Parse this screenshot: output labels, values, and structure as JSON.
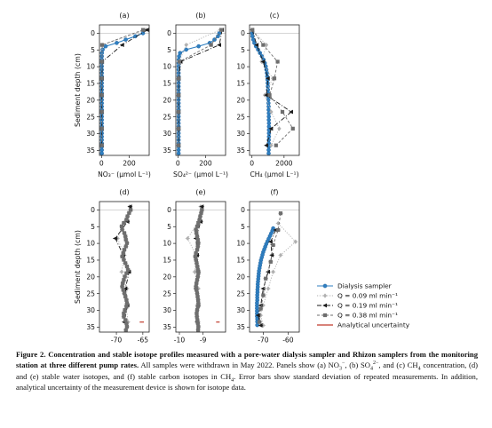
{
  "chart_data": [
    {
      "type": "line",
      "panel": "(a)",
      "xlabel": "NO₃⁻  (µmol L⁻¹)",
      "ylabel": "Sediment depth (cm)",
      "xlim": [
        -15,
        345
      ],
      "ylim": [
        -2.5,
        36.5
      ],
      "xticks": [
        0,
        200
      ],
      "yticks": [
        0,
        5,
        10,
        15,
        20,
        25,
        30,
        35
      ],
      "series": [
        {
          "name": "Dialysis sampler",
          "x": [
            300,
            245,
            175,
            110,
            30,
            8,
            3,
            2,
            2,
            2,
            2,
            2,
            2,
            2,
            2,
            2,
            2,
            2,
            2,
            2,
            2,
            2,
            2,
            2,
            2,
            2,
            2,
            2,
            2,
            2,
            2,
            2,
            2,
            2,
            2,
            2,
            2
          ],
          "y": [
            0,
            0.9,
            1.9,
            2.9,
            3.9,
            4.9,
            5.9,
            6.9,
            7.9,
            8.9,
            9.9,
            10.9,
            11.9,
            12.9,
            13.9,
            14.9,
            15.9,
            16.9,
            17.9,
            18.9,
            19.9,
            20.9,
            21.9,
            22.9,
            23.9,
            24.9,
            25.9,
            26.9,
            27.9,
            28.9,
            29.9,
            30.9,
            31.9,
            32.9,
            33.9,
            34.9,
            35.9
          ]
        },
        {
          "name": "Q = 0.09 ml min⁻¹",
          "x": [
            320,
            5,
            3,
            3,
            2,
            2,
            2,
            2
          ],
          "y": [
            -1,
            3.5,
            8.5,
            13.5,
            18.5,
            23.5,
            28.5,
            33.5
          ]
        },
        {
          "name": "Q = 0.19 ml min⁻¹",
          "x": [
            330,
            150,
            5,
            3,
            2,
            2,
            2,
            2
          ],
          "y": [
            -1,
            3.5,
            8.5,
            13.5,
            18.5,
            23.5,
            28.5,
            33.5
          ]
        },
        {
          "name": "Q = 0.38 ml min⁻¹",
          "x": [
            300,
            4,
            3,
            2,
            2,
            2,
            2,
            2
          ],
          "y": [
            -1,
            3.5,
            8.5,
            13.5,
            18.5,
            23.5,
            28.5,
            33.5
          ]
        }
      ]
    },
    {
      "type": "line",
      "panel": "(b)",
      "xlabel": "SO₄²⁻  (µmol L⁻¹)",
      "ylabel": "",
      "xlim": [
        -15,
        345
      ],
      "ylim": [
        -2.5,
        36.5
      ],
      "xticks": [
        0,
        200
      ],
      "yticks": [
        0,
        5,
        10,
        15,
        20,
        25,
        30,
        35
      ],
      "series": [
        {
          "name": "Dialysis sampler",
          "x": [
            300,
            290,
            265,
            230,
            150,
            60,
            15,
            8,
            6,
            5,
            5,
            5,
            5,
            5,
            5,
            5,
            5,
            5,
            5,
            5,
            5,
            5,
            5,
            5,
            5,
            5,
            5,
            5,
            5,
            5,
            5,
            5,
            5,
            5,
            5,
            5,
            5
          ],
          "y": [
            0,
            0.9,
            1.9,
            2.9,
            3.9,
            4.9,
            5.9,
            6.9,
            7.9,
            8.9,
            9.9,
            10.9,
            11.9,
            12.9,
            13.9,
            14.9,
            15.9,
            16.9,
            17.9,
            18.9,
            19.9,
            20.9,
            21.9,
            22.9,
            23.9,
            24.9,
            25.9,
            26.9,
            27.9,
            28.9,
            29.9,
            30.9,
            31.9,
            32.9,
            33.9,
            34.9,
            35.9
          ]
        },
        {
          "name": "Q = 0.09 ml min⁻¹",
          "x": [
            305,
            60,
            8,
            5,
            5,
            5,
            5,
            5
          ],
          "y": [
            -1,
            3.5,
            8.5,
            13.5,
            18.5,
            23.5,
            28.5,
            33.5
          ]
        },
        {
          "name": "Q = 0.19 ml min⁻¹",
          "x": [
            320,
            300,
            20,
            6,
            5,
            5,
            5,
            5
          ],
          "y": [
            -1,
            3.5,
            8.5,
            13.5,
            18.5,
            23.5,
            28.5,
            33.5
          ]
        },
        {
          "name": "Q = 0.38 ml min⁻¹",
          "x": [
            315,
            240,
            10,
            5,
            5,
            5,
            5,
            5
          ],
          "y": [
            -1,
            3.5,
            8.5,
            13.5,
            18.5,
            23.5,
            28.5,
            33.5
          ]
        }
      ]
    },
    {
      "type": "line",
      "panel": "(c)",
      "xlabel": "CH₄  (µmol L⁻¹)",
      "ylabel": "",
      "xlim": [
        -150,
        2950
      ],
      "ylim": [
        -2.5,
        36.5
      ],
      "xticks": [
        0,
        2000
      ],
      "yticks": [
        0,
        5,
        10,
        15,
        20,
        25,
        30,
        35
      ],
      "series": [
        {
          "name": "Dialysis sampler",
          "x": [
            10,
            30,
            80,
            150,
            250,
            380,
            500,
            620,
            720,
            800,
            860,
            900,
            930,
            950,
            970,
            980,
            990,
            1000,
            1010,
            1010,
            1020,
            1030,
            1040,
            1040,
            1050,
            1050,
            1050,
            1060,
            1060,
            1060,
            1060,
            1060,
            1050,
            1050,
            1050,
            1040,
            1040
          ],
          "y": [
            0,
            0.9,
            1.9,
            2.9,
            3.9,
            4.9,
            5.9,
            6.9,
            7.9,
            8.9,
            9.9,
            10.9,
            11.9,
            12.9,
            13.9,
            14.9,
            15.9,
            16.9,
            17.9,
            18.9,
            19.9,
            20.9,
            21.9,
            22.9,
            23.9,
            24.9,
            25.9,
            26.9,
            27.9,
            28.9,
            29.9,
            30.9,
            31.9,
            32.9,
            33.9,
            34.9,
            35.9
          ]
        },
        {
          "name": "Q = 0.09 ml min⁻¹",
          "x": [
            15,
            900,
            600,
            1300,
            800,
            1200,
            1700,
            1200
          ],
          "y": [
            -1,
            3.5,
            8.5,
            13.5,
            18.5,
            23.5,
            28.5,
            33.5
          ]
        },
        {
          "name": "Q = 0.19 ml min⁻¹",
          "x": [
            20,
            300,
            700,
            1000,
            900,
            2450,
            1200,
            900
          ],
          "y": [
            -1,
            3.5,
            8.5,
            13.5,
            18.5,
            23.5,
            28.5,
            33.5
          ]
        },
        {
          "name": "Q = 0.38 ml min⁻¹",
          "x": [
            30,
            700,
            1600,
            1400,
            1100,
            1900,
            2550,
            1500
          ],
          "y": [
            -1,
            3.5,
            8.5,
            13.5,
            18.5,
            23.5,
            28.5,
            33.5
          ]
        }
      ]
    },
    {
      "type": "line",
      "panel": "(d)",
      "xlabel": "δ²H (‰)",
      "ylabel": "Sediment depth (cm)",
      "xlim": [
        -73.2,
        -63.8
      ],
      "ylim": [
        -2.5,
        36.5
      ],
      "xticks": [
        -70,
        -65
      ],
      "yticks": [
        0,
        5,
        10,
        15,
        20,
        25,
        30,
        35
      ],
      "series": [
        {
          "name": "Q = 0.09 ml min⁻¹",
          "x": [
            -67.5,
            -68.4,
            -69.8,
            -68.5,
            -69.0,
            -68.0,
            -68.2,
            -67.8
          ],
          "y": [
            -1,
            3.5,
            8.5,
            13.5,
            18.5,
            23.5,
            28.5,
            33.5
          ]
        },
        {
          "name": "Q = 0.19 ml min⁻¹",
          "x": [
            -67.4,
            -67.9,
            -70.2,
            -68.7,
            -67.6,
            -68.3,
            -67.9,
            -68.5
          ],
          "y": [
            -1,
            3.5,
            8.5,
            13.5,
            18.5,
            23.5,
            28.5,
            33.5
          ]
        },
        {
          "name": "Q = 0.38 ml min⁻¹",
          "x": [
            -67.3,
            -67.6,
            -67.9,
            -68.1,
            -68.6,
            -69.0,
            -68.9,
            -68.5,
            -68.3,
            -68.2,
            -68.0,
            -68.2,
            -68.5,
            -68.7,
            -68.9,
            -68.6,
            -68.3,
            -68.0,
            -67.8,
            -68.1,
            -68.4,
            -68.6,
            -68.8,
            -68.9,
            -68.7,
            -68.5,
            -68.3,
            -68.1,
            -68.0,
            -68.1,
            -68.4,
            -68.6,
            -68.6,
            -68.3,
            -68.1,
            -68.0,
            -68.2
          ],
          "y": [
            0,
            0.9,
            1.9,
            2.9,
            3.9,
            4.9,
            5.9,
            6.9,
            7.9,
            8.9,
            9.9,
            10.9,
            11.9,
            12.9,
            13.9,
            14.9,
            15.9,
            16.9,
            17.9,
            18.9,
            19.9,
            20.9,
            21.9,
            22.9,
            23.9,
            24.9,
            25.9,
            26.9,
            27.9,
            28.9,
            29.9,
            30.9,
            31.9,
            32.9,
            33.9,
            34.9,
            35.9
          ]
        },
        {
          "name": "Analytical uncertainty",
          "x": [
            -65.6,
            -64.8
          ],
          "y": [
            33.5,
            33.5
          ]
        }
      ]
    },
    {
      "type": "line",
      "panel": "(e)",
      "xlabel": "δ¹⁸O (‰)",
      "ylabel": "",
      "xlim": [
        -10.15,
        -8.05
      ],
      "ylim": [
        -2.5,
        36.5
      ],
      "xticks": [
        -10,
        -9
      ],
      "yticks": [
        0,
        5,
        10,
        15,
        20,
        25,
        30,
        35
      ],
      "series": [
        {
          "name": "Q = 0.09 ml min⁻¹",
          "x": [
            -9.1,
            -9.2,
            -9.65,
            -9.3,
            -9.35,
            -9.2,
            -9.25,
            -9.2
          ],
          "y": [
            -1,
            3.5,
            8.5,
            13.5,
            18.5,
            23.5,
            28.5,
            33.5
          ]
        },
        {
          "name": "Q = 0.19 ml min⁻¹",
          "x": [
            -9.05,
            -9.1,
            -9.3,
            -9.25,
            -9.2,
            -9.3,
            -9.2,
            -9.25
          ],
          "y": [
            -1,
            3.5,
            8.5,
            13.5,
            18.5,
            23.5,
            28.5,
            33.5
          ]
        },
        {
          "name": "Q = 0.38 ml min⁻¹",
          "x": [
            -9.05,
            -9.08,
            -9.12,
            -9.15,
            -9.2,
            -9.25,
            -9.3,
            -9.28,
            -9.25,
            -9.22,
            -9.2,
            -9.22,
            -9.25,
            -9.3,
            -9.33,
            -9.3,
            -9.27,
            -9.24,
            -9.22,
            -9.2,
            -9.22,
            -9.25,
            -9.28,
            -9.3,
            -9.28,
            -9.25,
            -9.23,
            -9.21,
            -9.2,
            -9.22,
            -9.25,
            -9.27,
            -9.26,
            -9.24,
            -9.22,
            -9.2,
            -9.21
          ],
          "y": [
            0,
            0.9,
            1.9,
            2.9,
            3.9,
            4.9,
            5.9,
            6.9,
            7.9,
            8.9,
            9.9,
            10.9,
            11.9,
            12.9,
            13.9,
            14.9,
            15.9,
            16.9,
            17.9,
            18.9,
            19.9,
            20.9,
            21.9,
            22.9,
            23.9,
            24.9,
            25.9,
            26.9,
            27.9,
            28.9,
            29.9,
            30.9,
            31.9,
            32.9,
            33.9,
            34.9,
            35.9
          ]
        },
        {
          "name": "Analytical uncertainty",
          "x": [
            -8.45,
            -8.3
          ],
          "y": [
            33.5,
            33.5
          ]
        }
      ]
    },
    {
      "type": "line",
      "panel": "(f)",
      "xlabel": "δ¹³C-CH₄ (‰)",
      "ylabel": "",
      "xlim": [
        -75.5,
        -55.5
      ],
      "ylim": [
        -2.5,
        36.5
      ],
      "xticks": [
        -70,
        -60
      ],
      "yticks": [
        0,
        5,
        10,
        15,
        20,
        25,
        30,
        35
      ],
      "series": [
        {
          "name": "Dialysis sampler",
          "x": [
            -66,
            -66.3,
            -66.8,
            -67.3,
            -67.8,
            -68.3,
            -68.8,
            -69.2,
            -69.6,
            -70.0,
            -70.3,
            -70.6,
            -70.9,
            -71.1,
            -71.3,
            -71.5,
            -71.7,
            -71.8,
            -71.9,
            -72.0,
            -72.1,
            -72.2,
            -72.2,
            -72.3,
            -72.3,
            -72.4,
            -72.4,
            -72.4,
            -72.5,
            -72.5,
            -72.5,
            -72.5,
            -72.5,
            -72.5,
            -72.4,
            -72.4,
            -72.4
          ],
          "y": [
            5.5,
            6.2,
            7,
            7.8,
            8.6,
            9.4,
            10.2,
            11,
            11.8,
            12.6,
            13.4,
            14.2,
            15,
            15.8,
            16.6,
            17.4,
            18.2,
            19,
            19.8,
            20.6,
            21.4,
            22.2,
            23,
            23.8,
            24.6,
            25.4,
            26.2,
            27,
            27.8,
            28.6,
            29.4,
            30.2,
            31,
            31.8,
            32.6,
            33.4,
            34.4
          ]
        },
        {
          "name": "Q = 0.09 ml min⁻¹",
          "x": [
            -64,
            -57,
            -63,
            -66,
            -68,
            -70,
            -71,
            -70
          ],
          "y": [
            4,
            9.5,
            13.5,
            18.5,
            23.5,
            28.5,
            31.5,
            34.5
          ]
        },
        {
          "name": "Q = 0.19 ml min⁻¹",
          "x": [
            -65,
            -67,
            -66.5,
            -68,
            -70,
            -71,
            -72,
            -71
          ],
          "y": [
            6,
            9.5,
            13.5,
            18.5,
            23.5,
            28.5,
            31.5,
            34.5
          ]
        },
        {
          "name": "Q = 0.38 ml min⁻¹",
          "x": [
            -63,
            -64,
            -66,
            -67,
            -69,
            -70,
            -71,
            -71.5
          ],
          "y": [
            1,
            6,
            10.5,
            15.5,
            20.5,
            25.5,
            29.5,
            33.5
          ]
        }
      ]
    }
  ],
  "legend": {
    "items": [
      {
        "label": "Dialysis sampler",
        "style": "dialysis"
      },
      {
        "label": "Q = 0.09 ml min⁻¹",
        "style": "q009"
      },
      {
        "label": "Q = 0.19 ml min⁻¹",
        "style": "q019"
      },
      {
        "label": "Q = 0.38 ml min⁻¹",
        "style": "q038"
      },
      {
        "label": "Analytical uncertainty",
        "style": "unc"
      }
    ]
  },
  "styles": {
    "dialysis": {
      "color": "#2f7fc1",
      "marker": "circle",
      "dash": ""
    },
    "q009": {
      "color": "#b0b0b0",
      "marker": "diamond",
      "dash": "1.2,1.6"
    },
    "q019": {
      "color": "#1a1a1a",
      "marker": "triangle-left",
      "dash": "5,2,1,2"
    },
    "q038": {
      "color": "#6e6e6e",
      "marker": "square",
      "dash": "3,2"
    },
    "unc": {
      "color": "#c0392b"
    }
  },
  "caption": {
    "title": "Figure 2. Concentration and stable isotope profiles measured with a pore-water dialysis sampler and Rhizon samplers from the monitoring station at three different pump rates.",
    "body_1": "All samples were withdrawn in May 2022. Panels show (a) NO",
    "body_2": ", (b) SO",
    "body_3": ", and (c) CH",
    "body_4": " concentration, (d) and (e) stable water isotopes, and (f) stable carbon isotopes in CH",
    "body_5": ". Error bars show standard deviation of repeated measurements. In addition, analytical uncertainty of the measurement device is shown for isotope data.",
    "sub_3": "3",
    "sup_minus": "−",
    "sub_4": "4",
    "sup_2minus": "2−"
  }
}
